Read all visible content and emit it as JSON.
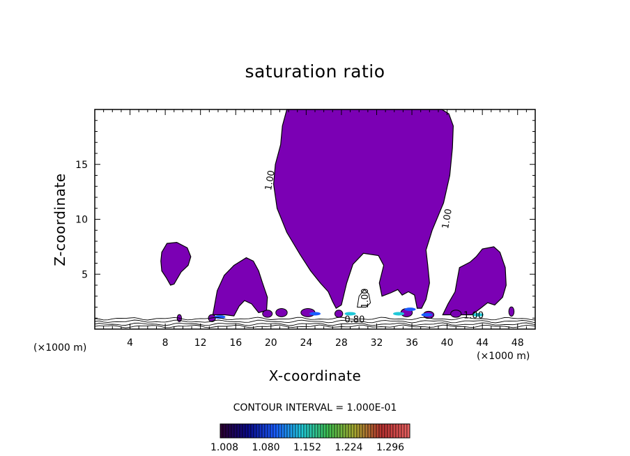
{
  "chart_data": {
    "type": "heatmap",
    "title": "saturation ratio",
    "xlabel": "X-coordinate",
    "ylabel": "Z-coordinate",
    "x_unit_left": "(×1000 m)",
    "x_unit_right": "(×1000 m)",
    "xlim": [
      0,
      50
    ],
    "ylim": [
      0,
      20
    ],
    "xticks": [
      4,
      8,
      12,
      16,
      20,
      24,
      28,
      32,
      36,
      40,
      44,
      48
    ],
    "yticks": [
      5,
      10,
      15
    ],
    "contour_interval_text": "CONTOUR INTERVAL = 1.000E-01",
    "contour_labels": [
      {
        "text": "1.00",
        "x": 20.2,
        "z": 13.5
      },
      {
        "text": "1.00",
        "x": 40.3,
        "z": 10.0
      },
      {
        "text": "1.00",
        "x": 31.0,
        "z": 2.8
      },
      {
        "text": "1.00",
        "x": 43.0,
        "z": 1.0
      },
      {
        "text": "0.80",
        "x": 29.5,
        "z": 0.6
      }
    ],
    "colorbar": {
      "ticks": [
        "1.008",
        "1.080",
        "1.152",
        "1.224",
        "1.296"
      ],
      "colors": [
        "#2b0033",
        "#0a0a8a",
        "#1a5cff",
        "#21c8d8",
        "#3fbf4f",
        "#a8a830",
        "#b83030",
        "#e86060"
      ]
    },
    "fill_color": "#7b00b4",
    "regions": [
      {
        "name": "main-cloud",
        "x": [
          20.4,
          40.8
        ],
        "z": [
          1.0,
          20.0
        ]
      },
      {
        "name": "left-cloud",
        "x": [
          7.5,
          10.9
        ],
        "z": [
          4.0,
          7.9
        ]
      },
      {
        "name": "mid-left-cloud",
        "x": [
          13.4,
          19.6
        ],
        "z": [
          1.2,
          6.5
        ]
      },
      {
        "name": "right-cloud",
        "x": [
          39.5,
          46.7
        ],
        "z": [
          1.2,
          7.5
        ]
      }
    ],
    "grid": false
  }
}
